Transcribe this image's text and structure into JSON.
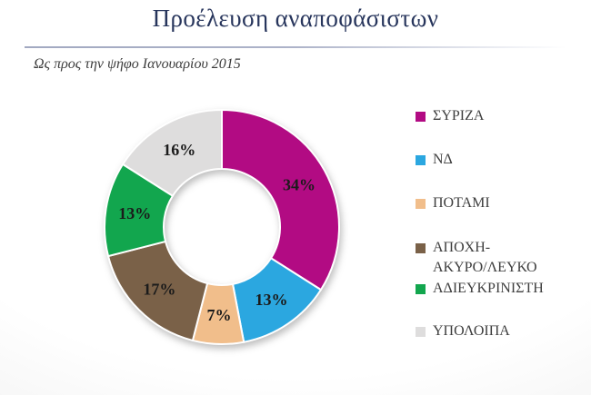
{
  "chart_data": {
    "type": "pie",
    "donut": true,
    "title": "Προέλευση αναποφάσιστων",
    "subtitle": "Ως προς την ψήφο Ιανουαρίου 2015",
    "legend_position": "right",
    "total": 100,
    "slices": [
      {
        "label": "ΣΥΡΙΖΑ",
        "value": 34,
        "display": "34%",
        "color": "#B20B83"
      },
      {
        "label": "ΝΔ",
        "value": 13,
        "display": "13%",
        "color": "#2BA7E0"
      },
      {
        "label": "ΠΟΤΑΜΙ",
        "value": 7,
        "display": "7%",
        "color": "#F1BE8B"
      },
      {
        "label": "ΑΠΟΧΗ-ΑΚΥΡΟ/ΛΕΥΚΟ",
        "value": 17,
        "display": "17%",
        "color": "#7A6148",
        "legend_lines": [
          "ΑΠΟΧΗ-",
          "ΑΚΥΡΟ/ΛΕΥΚΟ"
        ]
      },
      {
        "label": "ΑΔΙΕΥΚΡΙΝΙΣΤΗ",
        "value": 13,
        "display": "13%",
        "color": "#12A64E"
      },
      {
        "label": "ΥΠΟΛΟΙΠΑ",
        "value": 16,
        "display": "16%",
        "color": "#DEDDDD"
      }
    ],
    "colors": {
      "title_text": "#27355c",
      "body_text": "#3e3e3e",
      "value_labels": "#1b1b1b",
      "slice_separator": "#ffffff"
    }
  }
}
